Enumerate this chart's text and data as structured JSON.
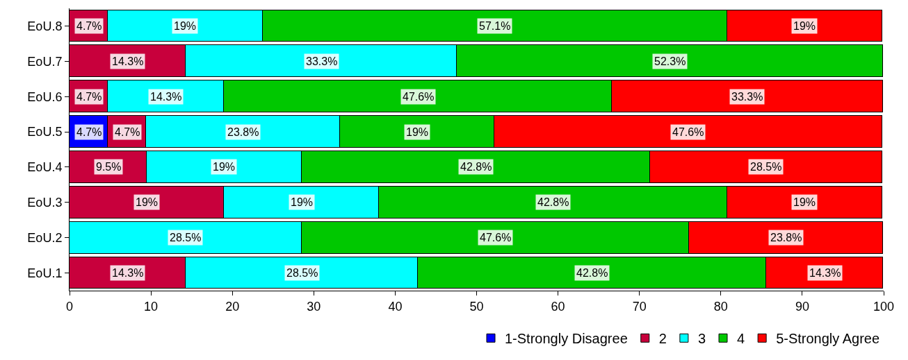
{
  "chart_data": {
    "type": "bar",
    "orientation": "horizontal",
    "stacked": true,
    "categories": [
      "EoU.8",
      "EoU.7",
      "EoU.6",
      "EoU.5",
      "EoU.4",
      "EoU.3",
      "EoU.2",
      "EoU.1"
    ],
    "series": [
      {
        "name": "1-Strongly Disagree",
        "color": "#0000ff",
        "values": [
          null,
          null,
          null,
          4.7,
          null,
          null,
          null,
          null
        ],
        "value_labels": [
          null,
          null,
          null,
          "4.7%",
          null,
          null,
          null,
          null
        ]
      },
      {
        "name": "2",
        "color": "#c8003c",
        "values": [
          4.7,
          14.3,
          4.7,
          4.7,
          9.5,
          19,
          null,
          14.3
        ],
        "value_labels": [
          "4.7%",
          "14.3%",
          "4.7%",
          "4.7%",
          "9.5%",
          "19%",
          null,
          "14.3%"
        ]
      },
      {
        "name": "3",
        "color": "#00ffff",
        "values": [
          19,
          33.3,
          14.3,
          23.8,
          19,
          19,
          28.5,
          28.5
        ],
        "value_labels": [
          "19%",
          "33.3%",
          "14.3%",
          "23.8%",
          "19%",
          "19%",
          "28.5%",
          "28.5%"
        ]
      },
      {
        "name": "4",
        "color": "#00c800",
        "values": [
          57.1,
          52.3,
          47.6,
          19,
          42.8,
          42.8,
          47.6,
          42.8
        ],
        "value_labels": [
          "57.1%",
          "52.3%",
          "47.6%",
          "19%",
          "42.8%",
          "42.8%",
          "47.6%",
          "42.8%"
        ]
      },
      {
        "name": "5-Strongly Agree",
        "color": "#ff0000",
        "values": [
          19,
          null,
          33.3,
          47.6,
          28.5,
          19,
          23.8,
          14.3
        ],
        "value_labels": [
          "19%",
          null,
          "33.3%",
          "47.6%",
          "28.5%",
          "19%",
          "23.8%",
          "14.3%"
        ]
      }
    ],
    "xlim": [
      0,
      100
    ],
    "xticks": [
      0,
      10,
      20,
      30,
      40,
      50,
      60,
      70,
      80,
      90,
      100
    ],
    "legend": "bottom",
    "grid": false
  }
}
